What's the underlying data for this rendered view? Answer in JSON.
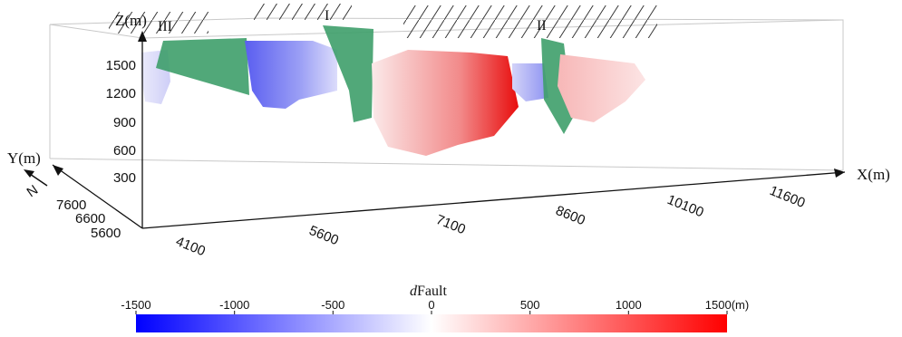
{
  "figure": {
    "axes": {
      "z_label": "Z(m)",
      "y_label": "Y(m)",
      "x_label": "X(m)",
      "north": "N",
      "z_ticks": [
        "1500",
        "1200",
        "900",
        "600",
        "300"
      ],
      "y_ticks": [
        "7600",
        "6600",
        "5600"
      ],
      "x_ticks": [
        "4100",
        "5600",
        "7100",
        "8600",
        "10100",
        "11600"
      ]
    },
    "faults": [
      {
        "label": "III",
        "color": "#3e9e6a"
      },
      {
        "label": "I",
        "color": "#3e9e6a"
      },
      {
        "label": "II",
        "color": "#3e9e6a"
      }
    ],
    "colorbar": {
      "title_italic": "d",
      "title_rest": "Fault",
      "ticks": [
        "-1500",
        "-1000",
        "-500",
        "0",
        "500",
        "1000",
        "1500(m)"
      ],
      "min": -1500,
      "max": 1500,
      "low_color": "#0000ff",
      "mid_color": "#ffffff",
      "high_color": "#ff0000"
    }
  }
}
